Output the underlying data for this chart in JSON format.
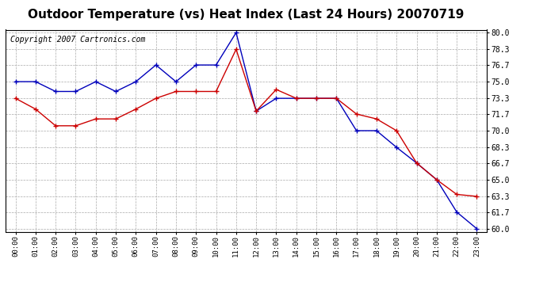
{
  "title": "Outdoor Temperature (vs) Heat Index (Last 24 Hours) 20070719",
  "copyright": "Copyright 2007 Cartronics.com",
  "hours": [
    "00:00",
    "01:00",
    "02:00",
    "03:00",
    "04:00",
    "05:00",
    "06:00",
    "07:00",
    "08:00",
    "09:00",
    "10:00",
    "11:00",
    "12:00",
    "13:00",
    "14:00",
    "15:00",
    "16:00",
    "17:00",
    "18:00",
    "19:00",
    "20:00",
    "21:00",
    "22:00",
    "23:00"
  ],
  "blue_temp": [
    75.0,
    75.0,
    74.0,
    74.0,
    75.0,
    74.0,
    75.0,
    76.7,
    75.0,
    76.7,
    76.7,
    80.0,
    72.0,
    73.3,
    73.3,
    73.3,
    73.3,
    70.0,
    70.0,
    68.3,
    66.7,
    65.0,
    61.7,
    60.0
  ],
  "red_heat": [
    73.3,
    72.2,
    70.5,
    70.5,
    71.2,
    71.2,
    72.2,
    73.3,
    74.0,
    74.0,
    74.0,
    78.3,
    72.0,
    74.2,
    73.3,
    73.3,
    73.3,
    71.7,
    71.2,
    70.0,
    66.7,
    65.0,
    63.5,
    63.3
  ],
  "ylim_min": 60.0,
  "ylim_max": 80.0,
  "yticks": [
    60.0,
    61.7,
    63.3,
    65.0,
    66.7,
    68.3,
    70.0,
    71.7,
    73.3,
    75.0,
    76.7,
    78.3,
    80.0
  ],
  "blue_color": "#0000BB",
  "red_color": "#CC0000",
  "bg_color": "#FFFFFF",
  "plot_bg": "#FFFFFF",
  "grid_color": "#AAAAAA",
  "title_fontsize": 11,
  "copyright_fontsize": 7
}
